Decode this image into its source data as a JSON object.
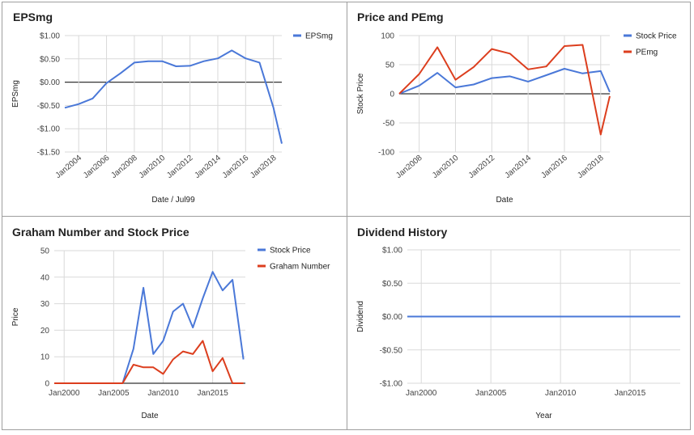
{
  "colors": {
    "blue": "#4a78d8",
    "red": "#dc3e1e",
    "grid": "#d9d9d9",
    "zero": "#333333"
  },
  "chart_data": [
    {
      "type": "line",
      "title": "EPSmg",
      "xlabel": "Date / Jul99",
      "ylabel": "EPSmg",
      "xlim": [
        2003.0,
        2018.6
      ],
      "ylim": [
        -1.5,
        1.0
      ],
      "yticks": [
        1.0,
        0.5,
        0.0,
        -0.5,
        -1.0,
        -1.5
      ],
      "ytick_labels": [
        "$1.00",
        "$0.50",
        "$0.00",
        "-$0.50",
        "-$1.00",
        "-$1.50"
      ],
      "xticks": [
        2004,
        2006,
        2008,
        2010,
        2012,
        2014,
        2016,
        2018
      ],
      "xtick_labels": [
        "Jan2004",
        "Jan2006",
        "Jan2008",
        "Jan2010",
        "Jan2012",
        "Jan2014",
        "Jan2016",
        "Jan2018"
      ],
      "legend": "right",
      "series": [
        {
          "name": "EPSmg",
          "color": "#4a78d8",
          "x": [
            2003.0,
            2004.0,
            2005.0,
            2006.0,
            2007.0,
            2008.0,
            2009.0,
            2010.0,
            2011.0,
            2012.0,
            2013.0,
            2014.0,
            2015.0,
            2016.0,
            2017.0,
            2018.0,
            2018.6
          ],
          "y": [
            -0.55,
            -0.47,
            -0.35,
            -0.02,
            0.19,
            0.42,
            0.45,
            0.45,
            0.34,
            0.35,
            0.45,
            0.51,
            0.68,
            0.51,
            0.42,
            -0.55,
            -1.32
          ]
        }
      ]
    },
    {
      "type": "line",
      "title": "Price and PEmg",
      "xlabel": "Date",
      "ylabel": "Stock Price",
      "xlim": [
        2006.9,
        2018.5
      ],
      "ylim": [
        -100,
        100
      ],
      "yticks": [
        100,
        50,
        0,
        -50,
        -100
      ],
      "ytick_labels": [
        "100",
        "50",
        "0",
        "-50",
        "-100"
      ],
      "xticks": [
        2008,
        2010,
        2012,
        2014,
        2016,
        2018
      ],
      "xtick_labels": [
        "Jan2008",
        "Jan2010",
        "Jan2012",
        "Jan2014",
        "Jan2016",
        "Jan2018"
      ],
      "legend": "right",
      "series": [
        {
          "name": "Stock Price",
          "color": "#4a78d8",
          "x": [
            2006.9,
            2008.0,
            2009.0,
            2010.0,
            2011.0,
            2012.0,
            2013.0,
            2014.0,
            2015.0,
            2016.0,
            2017.0,
            2018.0,
            2018.5
          ],
          "y": [
            0,
            14,
            36,
            11,
            16,
            27,
            30,
            21,
            32,
            43,
            35,
            39,
            3
          ]
        },
        {
          "name": "PEmg",
          "color": "#dc3e1e",
          "x": [
            2006.9,
            2008.0,
            2009.0,
            2010.0,
            2011.0,
            2012.0,
            2013.0,
            2014.0,
            2015.0,
            2016.0,
            2017.0,
            2018.0,
            2018.5
          ],
          "y": [
            0,
            34,
            80,
            24,
            46,
            77,
            69,
            42,
            47,
            82,
            84,
            -70,
            -4
          ]
        }
      ]
    },
    {
      "type": "line",
      "title": "Graham Number and Stock Price",
      "xlabel": "Date",
      "ylabel": "Price",
      "xlim": [
        1999.0,
        2018.3
      ],
      "ylim": [
        0,
        50
      ],
      "yticks": [
        50,
        40,
        30,
        20,
        10,
        0
      ],
      "ytick_labels": [
        "50",
        "40",
        "30",
        "20",
        "10",
        "0"
      ],
      "xticks": [
        2000,
        2005,
        2010,
        2015
      ],
      "xtick_labels": [
        "Jan2000",
        "Jan2005",
        "Jan2010",
        "Jan2015"
      ],
      "legend": "right",
      "series": [
        {
          "name": "Stock Price",
          "color": "#4a78d8",
          "x": [
            1999.0,
            2005.9,
            2007.0,
            2008.0,
            2009.0,
            2010.0,
            2011.0,
            2012.0,
            2013.0,
            2014.0,
            2015.0,
            2016.0,
            2017.0,
            2018.1
          ],
          "y": [
            0,
            0,
            13,
            36,
            11,
            16,
            27,
            30,
            21,
            32,
            42,
            35,
            39,
            9
          ]
        },
        {
          "name": "Graham Number",
          "color": "#dc3e1e",
          "x": [
            1999.0,
            2005.9,
            2007.0,
            2008.0,
            2009.0,
            2010.0,
            2011.0,
            2012.0,
            2013.0,
            2014.0,
            2015.0,
            2016.0,
            2017.0,
            2018.1
          ],
          "y": [
            0,
            0,
            7,
            6,
            6,
            3.5,
            9,
            12,
            11,
            16,
            4.5,
            9.5,
            0,
            0
          ]
        }
      ]
    },
    {
      "type": "line",
      "title": "Dividend History",
      "xlabel": "Year",
      "ylabel": "Dividend",
      "xlim": [
        1999.0,
        2018.6
      ],
      "ylim": [
        -1.0,
        1.0
      ],
      "yticks": [
        1.0,
        0.5,
        0.0,
        -0.5,
        -1.0
      ],
      "ytick_labels": [
        "$1.00",
        "$0.50",
        "$0.00",
        "-$0.50",
        "-$1.00"
      ],
      "xticks": [
        2000,
        2005,
        2010,
        2015
      ],
      "xtick_labels": [
        "Jan2000",
        "Jan2005",
        "Jan2010",
        "Jan2015"
      ],
      "legend": "none",
      "series": [
        {
          "color": "#4a78d8",
          "x": [
            1999.0,
            2018.6
          ],
          "y": [
            0,
            0
          ]
        }
      ]
    }
  ]
}
